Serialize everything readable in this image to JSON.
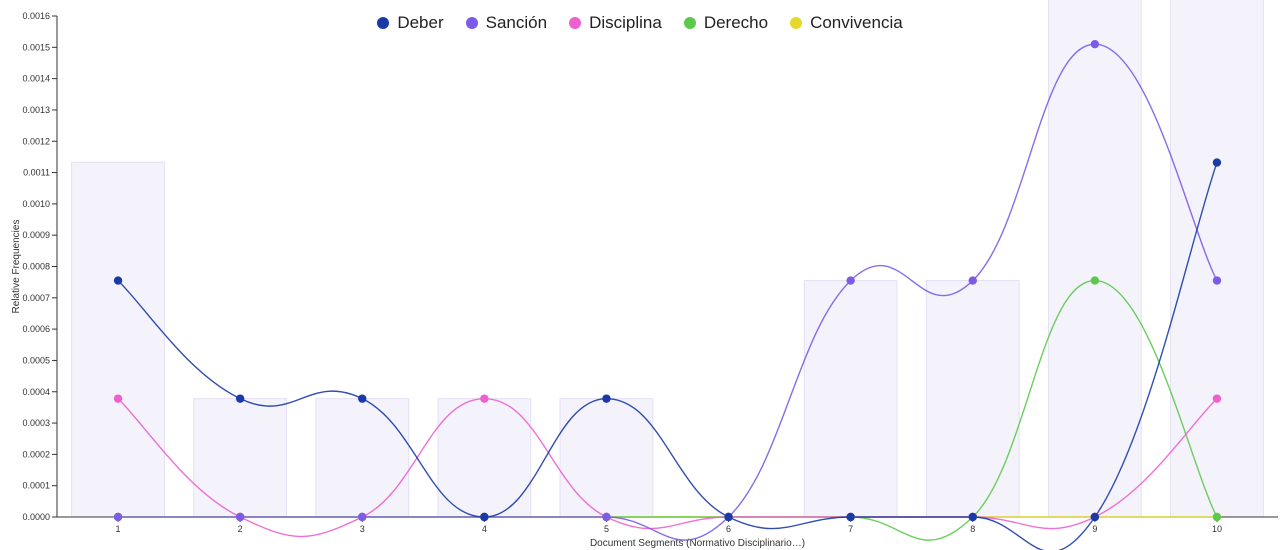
{
  "chart_data": {
    "type": "line",
    "xlabel": "Document Segments (Normativo Disciplinario…)",
    "ylabel": "Relative Frequencies",
    "categories": [
      "1",
      "2",
      "3",
      "4",
      "5",
      "6",
      "7",
      "8",
      "9",
      "10"
    ],
    "ylim": [
      0,
      0.0016
    ],
    "yticks": [
      "0.0000",
      "0.0001",
      "0.0002",
      "0.0003",
      "0.0004",
      "0.0005",
      "0.0006",
      "0.0007",
      "0.0008",
      "0.0009",
      "0.0010",
      "0.0011",
      "0.0012",
      "0.0013",
      "0.0014",
      "0.0015",
      "0.0016"
    ],
    "legend_position": "top-center",
    "series": [
      {
        "name": "Deber",
        "color": "#1a3aa8",
        "values": [
          0.000755,
          0.000378,
          0.000378,
          0,
          0.000378,
          0,
          0,
          0,
          0,
          0.001132
        ]
      },
      {
        "name": "Sanción",
        "color": "#7b5ce6",
        "values": [
          0,
          0,
          0,
          0,
          0,
          0,
          0.000755,
          0.000755,
          0.00151,
          0.000755
        ]
      },
      {
        "name": "Disciplina",
        "color": "#ee5fd0",
        "values": [
          0.000378,
          0,
          0,
          0.000378,
          0,
          0,
          0,
          0,
          0,
          0.000378
        ]
      },
      {
        "name": "Derecho",
        "color": "#5cc94d",
        "values": [
          0,
          0,
          0,
          0,
          0,
          0,
          0,
          0,
          0.000755,
          0
        ]
      },
      {
        "name": "Convivencia",
        "color": "#e3d92a",
        "values": [
          0,
          0,
          0,
          0,
          0,
          0,
          0,
          0,
          0,
          0
        ]
      }
    ]
  }
}
